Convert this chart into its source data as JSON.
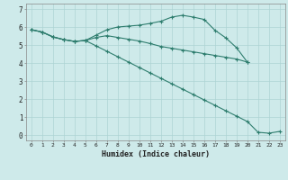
{
  "xlabel": "Humidex (Indice chaleur)",
  "ylabel": "",
  "background_color": "#ceeaea",
  "grid_color": "#aed4d4",
  "line_color": "#2e7d6e",
  "x_ticks": [
    0,
    1,
    2,
    3,
    4,
    5,
    6,
    7,
    8,
    9,
    10,
    11,
    12,
    13,
    14,
    15,
    16,
    17,
    18,
    19,
    20,
    21,
    22,
    23
  ],
  "y_ticks": [
    0,
    1,
    2,
    3,
    4,
    5,
    6,
    7
  ],
  "ylim": [
    -0.3,
    7.3
  ],
  "xlim": [
    -0.5,
    23.5
  ],
  "series1_x": [
    0,
    1,
    2,
    3,
    4,
    5,
    6,
    7,
    8,
    9,
    10,
    11,
    12,
    13,
    14,
    15,
    16,
    17,
    18,
    19,
    20
  ],
  "series1_y": [
    5.85,
    5.72,
    5.45,
    5.3,
    5.2,
    5.25,
    5.55,
    5.85,
    6.0,
    6.05,
    6.1,
    6.2,
    6.32,
    6.55,
    6.65,
    6.55,
    6.42,
    5.82,
    5.4,
    4.85,
    4.05
  ],
  "series2_x": [
    0,
    1,
    2,
    3,
    4,
    5,
    6,
    7,
    8,
    9,
    10,
    11,
    12,
    13,
    14,
    15,
    16,
    17,
    18,
    19,
    20
  ],
  "series2_y": [
    5.85,
    5.72,
    5.45,
    5.3,
    5.2,
    5.25,
    5.42,
    5.52,
    5.42,
    5.32,
    5.22,
    5.08,
    4.92,
    4.82,
    4.72,
    4.62,
    4.52,
    4.42,
    4.32,
    4.22,
    4.05
  ],
  "series3_x": [
    0,
    1,
    2,
    3,
    4,
    5,
    6,
    7,
    8,
    9,
    10,
    11,
    12,
    13,
    14,
    15,
    16,
    17,
    18,
    19,
    20,
    21,
    22,
    23
  ],
  "series3_y": [
    5.85,
    5.72,
    5.45,
    5.3,
    5.2,
    5.25,
    4.95,
    4.65,
    4.35,
    4.05,
    3.75,
    3.45,
    3.15,
    2.85,
    2.55,
    2.25,
    1.95,
    1.65,
    1.35,
    1.05,
    0.75,
    0.15,
    0.1,
    0.2
  ]
}
